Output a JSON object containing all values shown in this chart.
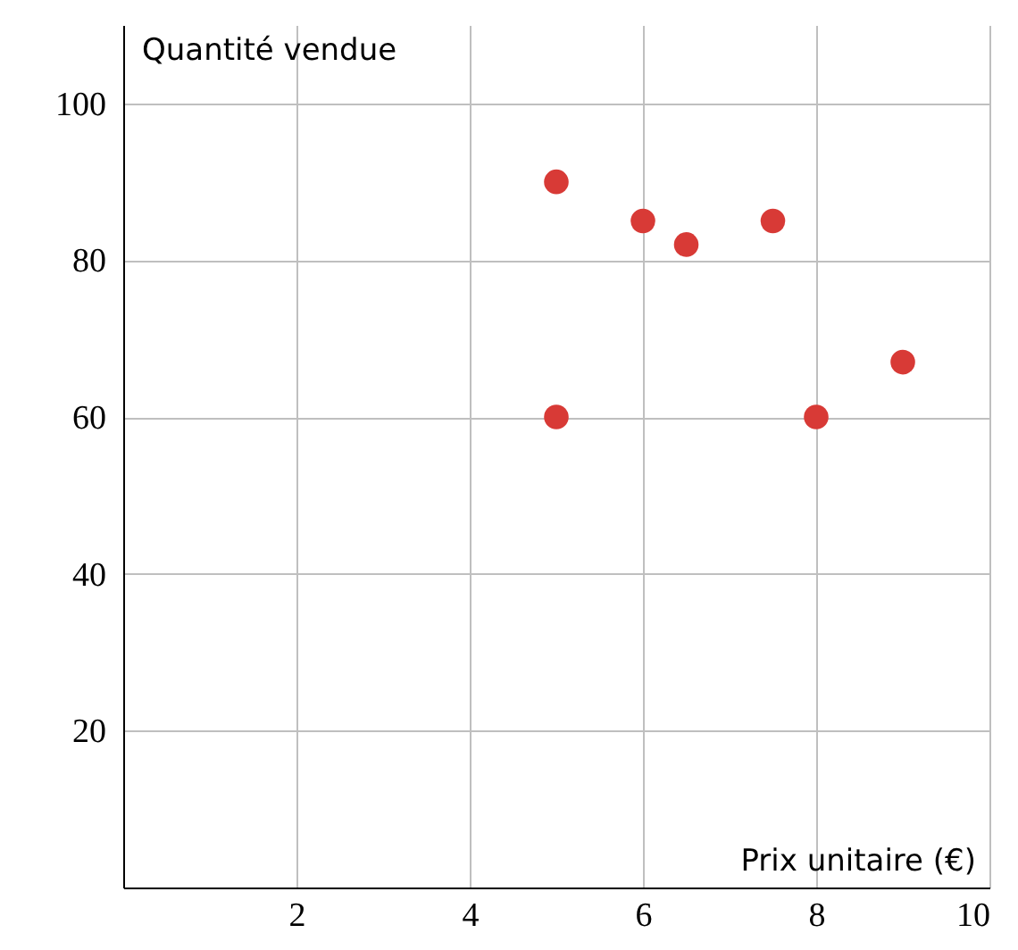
{
  "chart_data": {
    "type": "scatter",
    "xlabel": "Prix unitaire (€)",
    "ylabel": "Quantité vendue",
    "x": [
      5,
      5,
      6,
      6.5,
      7.5,
      8,
      9
    ],
    "series": [
      {
        "color": "#d83a36",
        "values": [
          90,
          60,
          85,
          82,
          85,
          60,
          67
        ]
      }
    ],
    "xlim": [
      0,
      10
    ],
    "ylim": [
      0,
      110
    ],
    "xticks": [
      2,
      4,
      6,
      8,
      10
    ],
    "yticks": [
      20,
      40,
      60,
      80,
      100
    ],
    "grid": true,
    "marker": "circle"
  }
}
